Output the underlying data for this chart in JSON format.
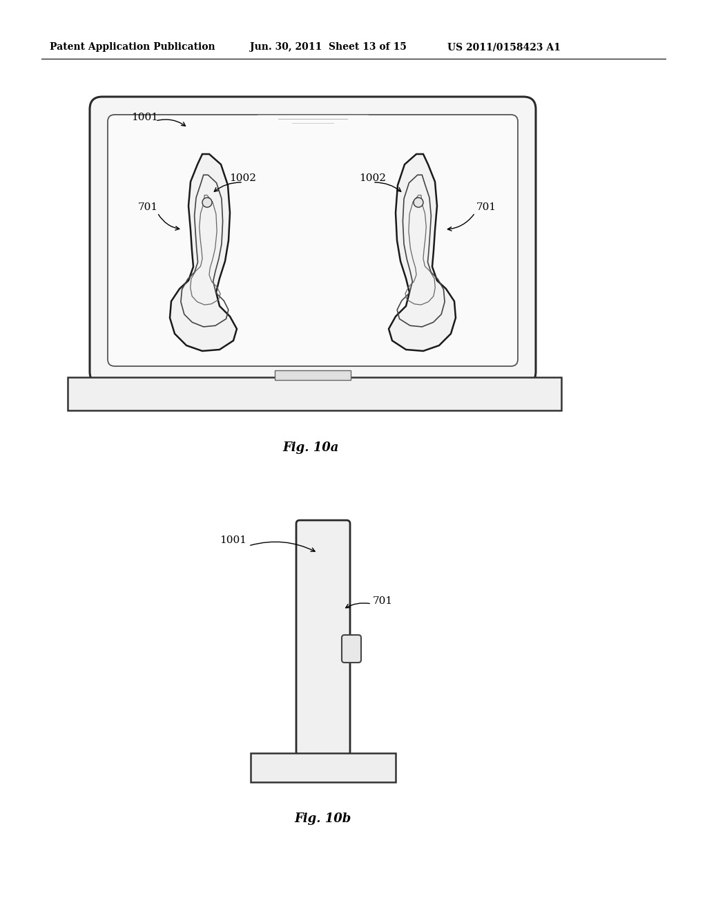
{
  "bg_color": "#ffffff",
  "header_left": "Patent Application Publication",
  "header_mid": "Jun. 30, 2011  Sheet 13 of 15",
  "header_right": "US 2011/0158423 A1",
  "fig_a_label": "Fig. 10a",
  "fig_b_label": "Fig. 10b",
  "labels": {
    "1001_a": "1001",
    "1002_left": "1002",
    "1002_right": "1002",
    "701_left": "701",
    "701_right": "701",
    "1001_b": "1001",
    "701_b": "701"
  }
}
